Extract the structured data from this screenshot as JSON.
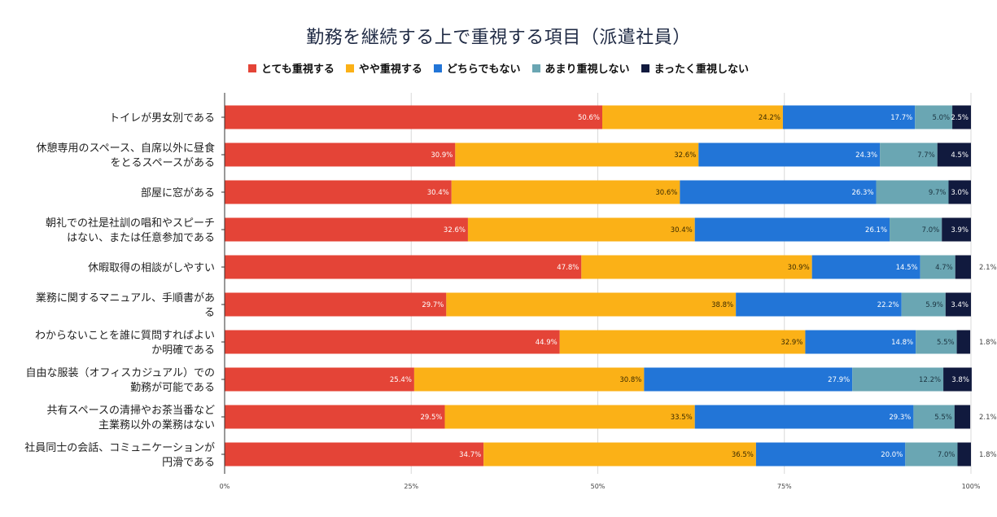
{
  "chart_data": {
    "type": "bar",
    "orientation": "horizontal",
    "stacked": true,
    "title": "勤務を継続する上で重視する項目（派遣社員）",
    "xlabel": "",
    "ylabel": "",
    "xlim": [
      0,
      100
    ],
    "x_ticks": [
      "0%",
      "25%",
      "50%",
      "75%",
      "100%"
    ],
    "grid": true,
    "legend_position": "top",
    "categories": [
      [
        "トイレが男女別である"
      ],
      [
        "休憩専用のスペース、自席以外に昼食",
        "をとるスペースがある"
      ],
      [
        "部屋に窓がある"
      ],
      [
        "朝礼での社是社訓の唱和やスピーチ",
        "はない、または任意参加である"
      ],
      [
        "休暇取得の相談がしやすい"
      ],
      [
        "業務に関するマニュアル、手順書があ",
        "る"
      ],
      [
        "わからないことを誰に質問すればよい",
        "か明確である"
      ],
      [
        "自由な服装（オフィスカジュアル）での",
        "勤務が可能である"
      ],
      [
        "共有スペースの清掃やお茶当番など",
        "主業務以外の業務はない"
      ],
      [
        "社員同士の会話、コミュニケーションが",
        "円滑である"
      ]
    ],
    "series": [
      {
        "name": "とても重視する",
        "color": "#e44437",
        "label_color": "#ffffff",
        "values": [
          50.6,
          30.9,
          30.4,
          32.6,
          47.8,
          29.7,
          44.9,
          25.4,
          29.5,
          34.7
        ]
      },
      {
        "name": "やや重視する",
        "color": "#fbb117",
        "label_color": "#3a2a00",
        "values": [
          24.2,
          32.6,
          30.6,
          30.4,
          30.9,
          38.8,
          32.9,
          30.8,
          33.5,
          36.5
        ]
      },
      {
        "name": "どちらでもない",
        "color": "#2275d7",
        "label_color": "#ffffff",
        "values": [
          17.7,
          24.3,
          26.3,
          26.1,
          14.5,
          22.2,
          14.8,
          27.9,
          29.3,
          20.0
        ]
      },
      {
        "name": "あまり重視しない",
        "color": "#6aa6b3",
        "label_color": "#1c3440",
        "values": [
          5.0,
          7.7,
          9.7,
          7.0,
          4.7,
          5.9,
          5.5,
          12.2,
          5.5,
          7.0
        ]
      },
      {
        "name": "まったく重視しない",
        "color": "#111a3e",
        "label_color": "#ffffff",
        "values": [
          2.5,
          4.5,
          3.0,
          3.9,
          2.1,
          3.4,
          1.8,
          3.8,
          2.1,
          1.8
        ],
        "outside_label_rows": [
          4,
          6,
          8,
          9
        ]
      }
    ]
  }
}
